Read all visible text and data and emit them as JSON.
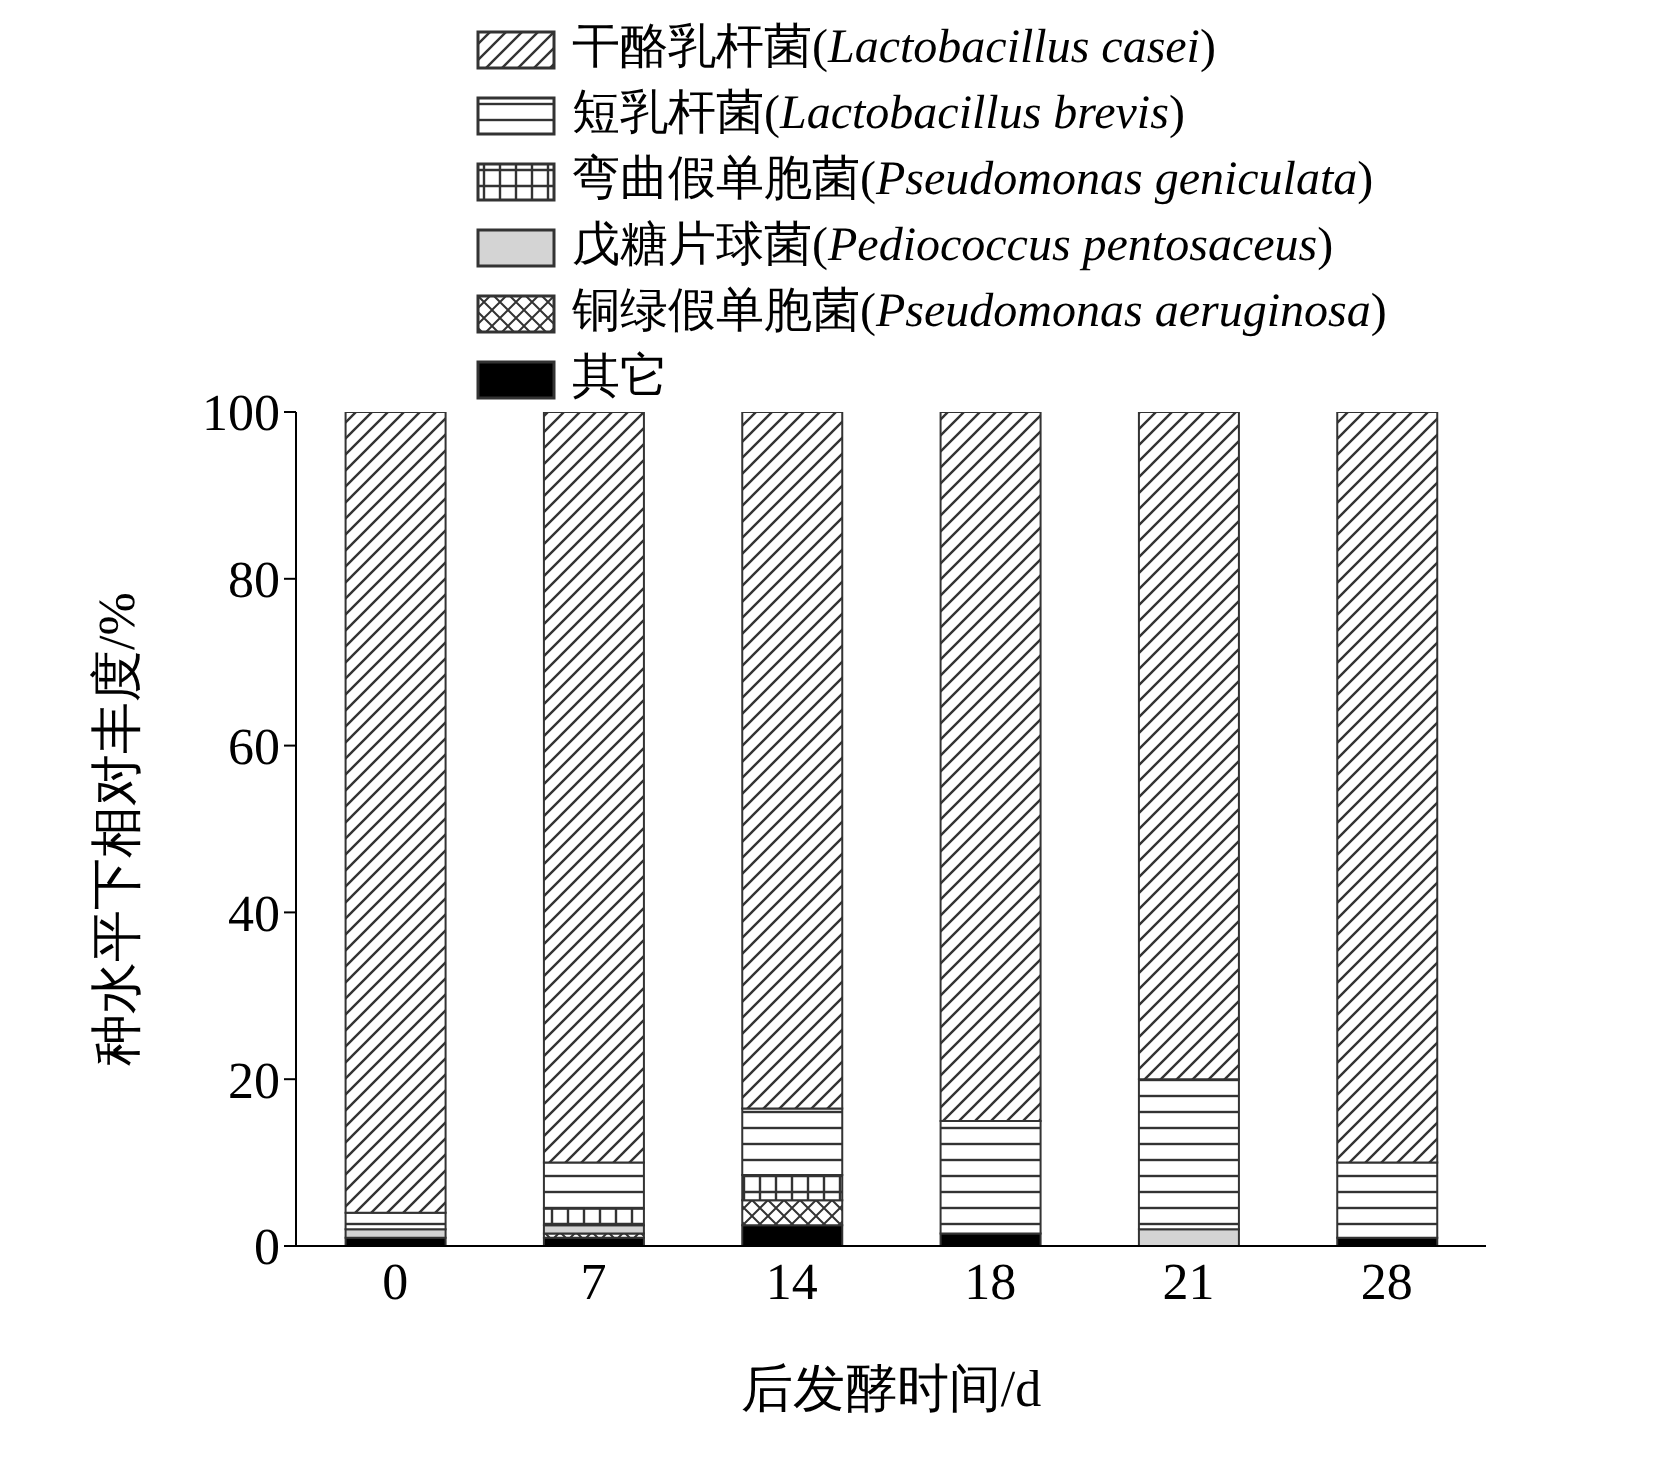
{
  "chart_data": {
    "type": "bar",
    "stacked": true,
    "xlabel": "后发酵时间/d",
    "ylabel": "种水平下相对丰度/%",
    "categories": [
      "0",
      "7",
      "14",
      "18",
      "21",
      "28"
    ],
    "ylim": [
      0,
      100
    ],
    "yticks": [
      0,
      20,
      40,
      60,
      80,
      100
    ],
    "grid": false,
    "legend": "top",
    "series": [
      {
        "name": "其它",
        "color": "#000000",
        "values": [
          1,
          1,
          2.5,
          1.5,
          0,
          1
        ]
      },
      {
        "name": "铜绿假单胞菌(Pseudomonas aeruginosa)",
        "color": "#333333",
        "values": [
          0,
          0.5,
          3,
          0,
          0,
          0
        ]
      },
      {
        "name": "戊糖片球菌(Pediococcus pentosaceus)",
        "color": "#d4d4d4",
        "values": [
          1,
          1,
          0,
          0,
          2,
          0
        ]
      },
      {
        "name": "弯曲假单胞菌(Pseudomonas geniculata)",
        "color": "#333333",
        "values": [
          0,
          2,
          3,
          0,
          0,
          0
        ]
      },
      {
        "name": "短乳杆菌(Lactobacillus brevis)",
        "color": "#333333",
        "values": [
          2,
          5.5,
          8,
          13.5,
          18,
          9
        ]
      },
      {
        "name": "干酪乳杆菌(Lactobacillus casei)",
        "color": "#333333",
        "values": [
          96,
          90,
          83.5,
          85,
          80,
          90
        ]
      }
    ]
  }
}
